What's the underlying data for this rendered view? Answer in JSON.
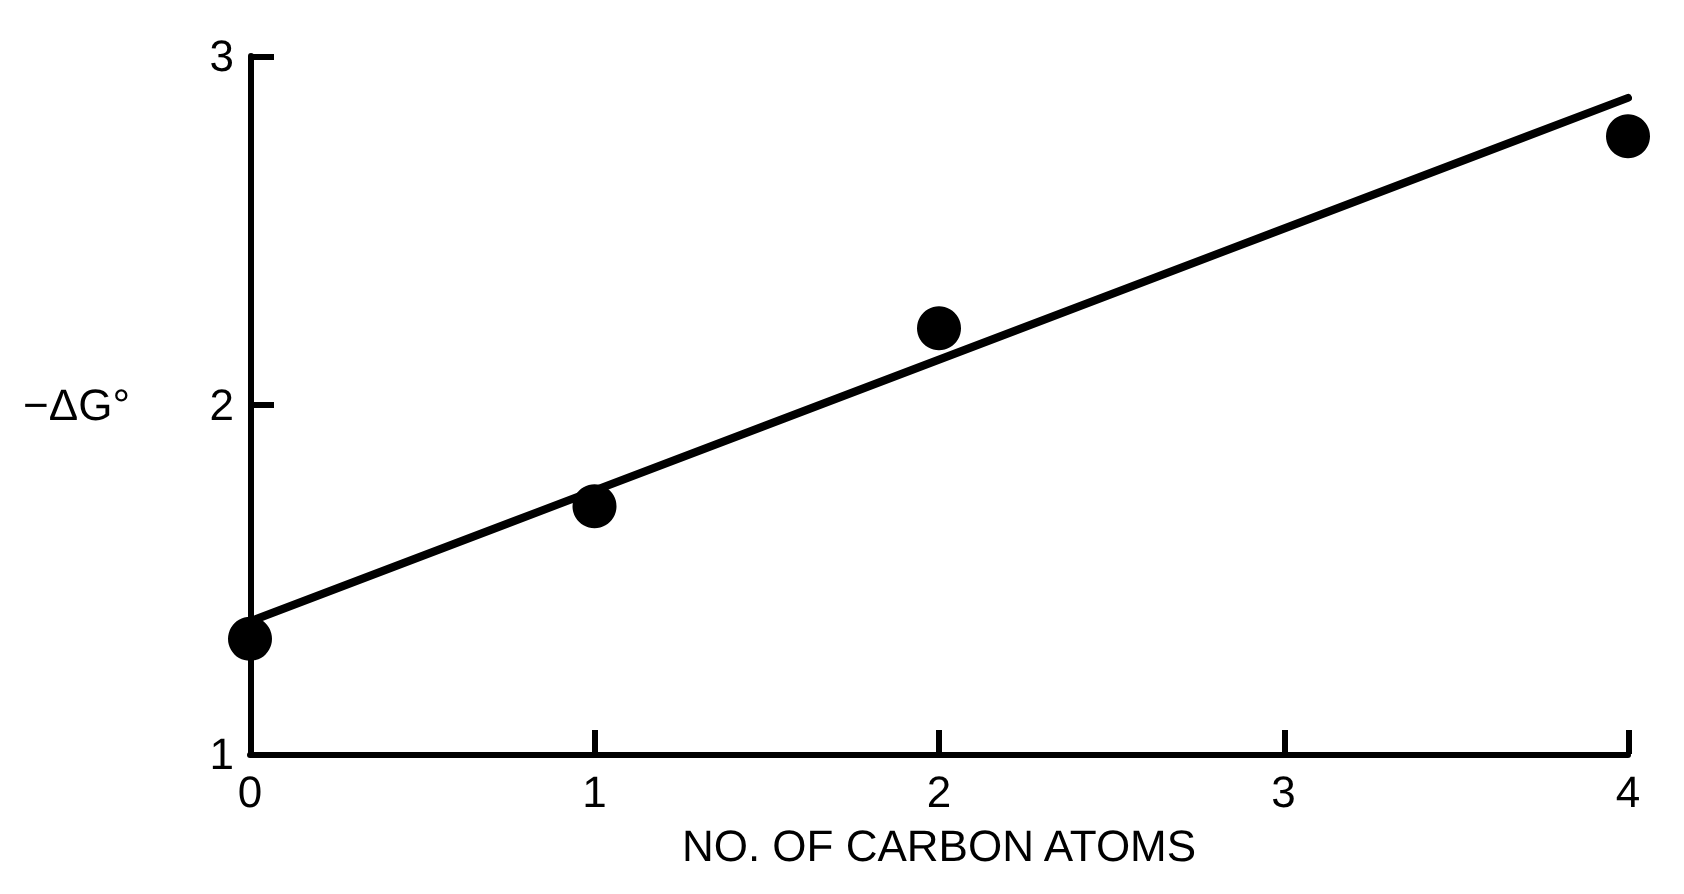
{
  "chart_data": {
    "type": "scatter",
    "xlabel": "NO. OF CARBON ATOMS",
    "ylabel": "−ΔG°",
    "xlim": [
      0,
      4
    ],
    "ylim": [
      1,
      3
    ],
    "xticks": [
      0,
      1,
      2,
      3,
      4
    ],
    "yticks": [
      1,
      2,
      3
    ],
    "grid": false,
    "marker": "circle",
    "series": [
      {
        "color": "#000000",
        "x": [
          0,
          1,
          2,
          4
        ],
        "values": [
          1.33,
          1.71,
          2.22,
          2.77
        ]
      },
      {
        "type": "line",
        "color": "#000000",
        "marker": "none",
        "line_style": "solid",
        "x": [
          0,
          4
        ],
        "values": [
          1.38,
          2.88
        ]
      }
    ]
  }
}
